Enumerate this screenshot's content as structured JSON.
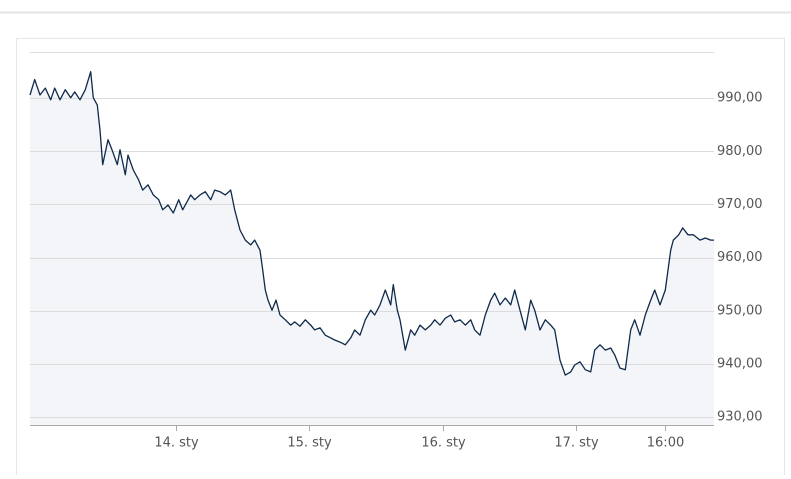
{
  "chart_data": {
    "type": "area",
    "line_color": "#0f2a4a",
    "fill_color": "#f3f5f8",
    "grid": true,
    "xlim": [
      12.905,
      18.035
    ],
    "ylim": [
      928.5,
      998.7
    ],
    "xticks": [
      {
        "value": 14,
        "label": "14. sty"
      },
      {
        "value": 15,
        "label": "15. sty"
      },
      {
        "value": 16,
        "label": "16. sty"
      },
      {
        "value": 17,
        "label": "17. sty"
      },
      {
        "value": 17.667,
        "label": "16:00"
      }
    ],
    "yticks": [
      {
        "value": 930,
        "label": "930,00"
      },
      {
        "value": 940,
        "label": "940,00"
      },
      {
        "value": 950,
        "label": "950,00"
      },
      {
        "value": 960,
        "label": "960,00"
      },
      {
        "value": 970,
        "label": "970,00"
      },
      {
        "value": 980,
        "label": "980,00"
      },
      {
        "value": 990,
        "label": "990,00"
      }
    ],
    "x": [
      12.905,
      12.94,
      12.98,
      13.02,
      13.06,
      13.09,
      13.13,
      13.17,
      13.21,
      13.24,
      13.28,
      13.32,
      13.36,
      13.38,
      13.41,
      13.43,
      13.45,
      13.49,
      13.52,
      13.56,
      13.58,
      13.62,
      13.64,
      13.68,
      13.72,
      13.75,
      13.79,
      13.83,
      13.87,
      13.9,
      13.94,
      13.98,
      14.02,
      14.05,
      14.11,
      14.14,
      14.18,
      14.22,
      14.26,
      14.29,
      14.33,
      14.37,
      14.41,
      14.44,
      14.48,
      14.52,
      14.56,
      14.59,
      14.63,
      14.65,
      14.67,
      14.69,
      14.72,
      14.75,
      14.78,
      14.82,
      14.86,
      14.89,
      14.93,
      14.97,
      15.01,
      15.04,
      15.08,
      15.12,
      15.16,
      15.19,
      15.23,
      15.27,
      15.31,
      15.34,
      15.38,
      15.42,
      15.46,
      15.49,
      15.53,
      15.57,
      15.61,
      15.63,
      15.66,
      15.68,
      15.72,
      15.76,
      15.79,
      15.83,
      15.87,
      15.91,
      15.94,
      15.98,
      16.02,
      16.06,
      16.09,
      16.13,
      16.17,
      16.21,
      16.24,
      16.28,
      16.32,
      16.36,
      16.39,
      16.43,
      16.47,
      16.51,
      16.54,
      16.58,
      16.62,
      16.66,
      16.69,
      16.73,
      16.77,
      16.81,
      16.84,
      16.88,
      16.92,
      16.96,
      16.99,
      17.03,
      17.07,
      17.11,
      17.14,
      17.18,
      17.22,
      17.26,
      17.29,
      17.33,
      17.37,
      17.41,
      17.44,
      17.48,
      17.52,
      17.56,
      17.59,
      17.63,
      17.67,
      17.71,
      17.73,
      17.77,
      17.8,
      17.84,
      17.88,
      17.93,
      17.97,
      18.01,
      18.035
    ],
    "values": [
      990.6,
      993.5,
      990.6,
      991.9,
      989.7,
      991.9,
      989.7,
      991.6,
      990.1,
      991.2,
      989.7,
      991.6,
      995.0,
      990.1,
      988.7,
      984.0,
      977.5,
      982.2,
      980.3,
      977.5,
      980.3,
      975.6,
      979.3,
      976.5,
      974.6,
      972.7,
      973.7,
      971.8,
      970.9,
      969.0,
      969.9,
      968.4,
      970.9,
      969.0,
      971.8,
      970.9,
      971.8,
      972.4,
      970.9,
      972.7,
      972.4,
      971.8,
      972.7,
      969.0,
      965.2,
      963.3,
      962.4,
      963.3,
      961.4,
      957.7,
      953.9,
      952.0,
      950.1,
      952.0,
      949.2,
      948.3,
      947.3,
      947.9,
      947.1,
      948.3,
      947.3,
      946.4,
      946.8,
      945.4,
      944.9,
      944.5,
      944.1,
      943.6,
      944.9,
      946.4,
      945.4,
      948.3,
      950.1,
      949.2,
      951.1,
      953.9,
      951.1,
      954.9,
      950.1,
      948.3,
      942.6,
      946.4,
      945.4,
      947.3,
      946.4,
      947.3,
      948.3,
      947.3,
      948.6,
      949.2,
      947.9,
      948.3,
      947.3,
      948.3,
      946.4,
      945.4,
      949.2,
      952.0,
      953.3,
      951.1,
      952.4,
      951.1,
      953.9,
      950.1,
      946.4,
      952.0,
      950.1,
      946.4,
      948.3,
      947.3,
      946.4,
      940.7,
      937.9,
      938.5,
      939.8,
      940.4,
      938.9,
      938.5,
      942.6,
      943.6,
      942.6,
      943.0,
      941.7,
      939.2,
      938.9,
      946.4,
      948.3,
      945.4,
      949.2,
      952.0,
      953.9,
      951.1,
      953.9,
      961.4,
      963.3,
      964.3,
      965.6,
      964.3,
      964.3,
      963.3,
      963.7,
      963.3,
      963.3
    ]
  }
}
